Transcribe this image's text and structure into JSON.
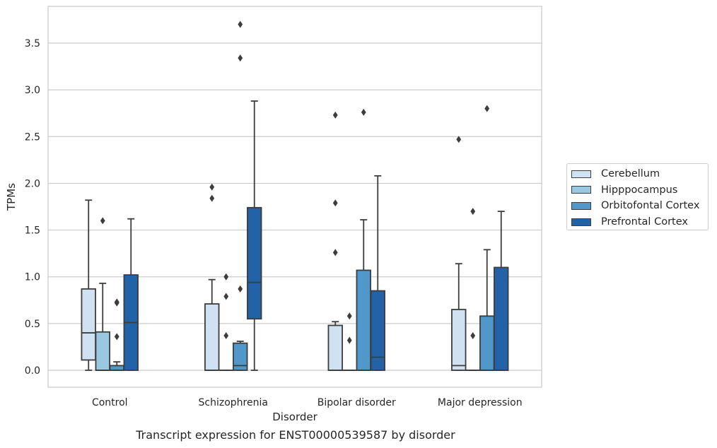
{
  "caption": "Transcript expression for ENST00000539587 by disorder",
  "chart_data": {
    "type": "box",
    "xlabel": "Disorder",
    "ylabel": "TPMs",
    "ylim": [
      -0.18,
      3.9
    ],
    "yticks": [
      "0.0",
      "0.5",
      "1.0",
      "1.5",
      "2.0",
      "2.5",
      "3.0",
      "3.5"
    ],
    "categories": [
      "Control",
      "Schizophrenia",
      "Bipolar disorder",
      "Major depression"
    ],
    "grid": "horizontal",
    "legend_position": "right",
    "series": [
      {
        "name": "Cerebellum",
        "color": "#d0e1f2",
        "boxes": [
          {
            "q1": 0.11,
            "median": 0.4,
            "q3": 0.87,
            "whisker_low": 0.0,
            "whisker_high": 1.82,
            "outliers": []
          },
          {
            "q1": 0.0,
            "median": 0.0,
            "q3": 0.71,
            "whisker_low": 0.0,
            "whisker_high": 0.97,
            "outliers": [
              1.84,
              1.96
            ]
          },
          {
            "q1": 0.0,
            "median": 0.0,
            "q3": 0.48,
            "whisker_low": 0.0,
            "whisker_high": 0.52,
            "outliers": [
              1.26,
              1.79,
              2.73
            ]
          },
          {
            "q1": 0.0,
            "median": 0.05,
            "q3": 0.65,
            "whisker_low": 0.0,
            "whisker_high": 1.14,
            "outliers": [
              2.47
            ]
          }
        ]
      },
      {
        "name": "Hipppocampus",
        "color": "#9ac8e0",
        "boxes": [
          {
            "q1": 0.0,
            "median": 0.0,
            "q3": 0.41,
            "whisker_low": 0.0,
            "whisker_high": 0.93,
            "outliers": [
              1.6
            ]
          },
          {
            "q1": 0.0,
            "median": 0.0,
            "q3": 0.0,
            "whisker_low": 0.0,
            "whisker_high": 0.0,
            "outliers": [
              0.37,
              0.79,
              1.0
            ]
          },
          {
            "q1": 0.0,
            "median": 0.0,
            "q3": 0.0,
            "whisker_low": 0.0,
            "whisker_high": 0.0,
            "outliers": [
              0.32,
              0.58
            ]
          },
          {
            "q1": 0.0,
            "median": 0.0,
            "q3": 0.0,
            "whisker_low": 0.0,
            "whisker_high": 0.0,
            "outliers": [
              0.37,
              1.7
            ]
          }
        ]
      },
      {
        "name": "Orbitofontal Cortex",
        "color": "#5098c9",
        "boxes": [
          {
            "q1": 0.0,
            "median": 0.0,
            "q3": 0.05,
            "whisker_low": 0.0,
            "whisker_high": 0.09,
            "outliers": [
              0.36,
              0.72,
              0.73
            ]
          },
          {
            "q1": 0.0,
            "median": 0.05,
            "q3": 0.29,
            "whisker_low": 0.0,
            "whisker_high": 0.31,
            "outliers": [
              0.87,
              3.34,
              3.7
            ]
          },
          {
            "q1": 0.0,
            "median": 0.0,
            "q3": 1.07,
            "whisker_low": 0.0,
            "whisker_high": 1.61,
            "outliers": [
              2.76
            ]
          },
          {
            "q1": 0.0,
            "median": 0.0,
            "q3": 0.58,
            "whisker_low": 0.0,
            "whisker_high": 1.29,
            "outliers": [
              2.8
            ]
          }
        ]
      },
      {
        "name": "Prefrontal Cortex",
        "color": "#2163a6",
        "boxes": [
          {
            "q1": 0.0,
            "median": 0.51,
            "q3": 1.02,
            "whisker_low": 0.0,
            "whisker_high": 1.62,
            "outliers": []
          },
          {
            "q1": 0.55,
            "median": 0.94,
            "q3": 1.74,
            "whisker_low": 0.0,
            "whisker_high": 2.88,
            "outliers": []
          },
          {
            "q1": 0.0,
            "median": 0.14,
            "q3": 0.85,
            "whisker_low": 0.0,
            "whisker_high": 2.08,
            "outliers": []
          },
          {
            "q1": 0.0,
            "median": 0.0,
            "q3": 1.1,
            "whisker_low": 0.0,
            "whisker_high": 1.7,
            "outliers": []
          }
        ]
      }
    ]
  }
}
